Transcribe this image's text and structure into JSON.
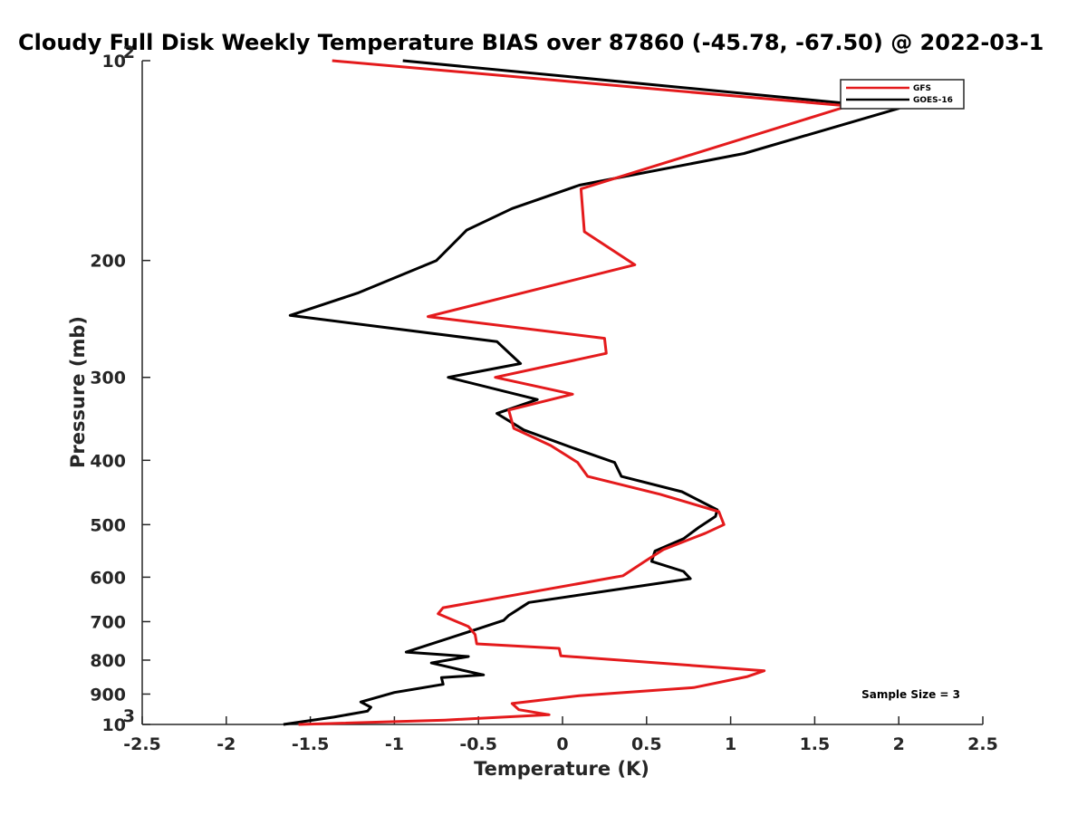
{
  "chart_data": {
    "type": "line",
    "title": "Cloudy Full Disk Weekly Temperature BIAS over 87860 (-45.78, -67.50) @ 2022-03-1",
    "xlabel": "Temperature (K)",
    "ylabel": "Pressure (mb)",
    "xlim": [
      -2.5,
      2.5
    ],
    "ylim": [
      100,
      1000
    ],
    "y_scale": "log",
    "y_reversed": true,
    "grid": false,
    "legend_position": "top-right",
    "x_ticks": [
      "-2.5",
      "-2",
      "-1.5",
      "-1",
      "-0.5",
      "0",
      "0.5",
      "1",
      "1.5",
      "2",
      "2.5"
    ],
    "x_tick_values": [
      -2.5,
      -2,
      -1.5,
      -1,
      -0.5,
      0,
      0.5,
      1,
      1.5,
      2,
      2.5
    ],
    "y_tick_values": [
      100,
      200,
      300,
      400,
      500,
      600,
      700,
      800,
      900,
      1000
    ],
    "y_tick_labels": [
      {
        "base": "10",
        "exp": "2"
      },
      {
        "base": "200",
        "exp": ""
      },
      {
        "base": "300",
        "exp": ""
      },
      {
        "base": "400",
        "exp": ""
      },
      {
        "base": "500",
        "exp": ""
      },
      {
        "base": "600",
        "exp": ""
      },
      {
        "base": "700",
        "exp": ""
      },
      {
        "base": "800",
        "exp": ""
      },
      {
        "base": "900",
        "exp": ""
      },
      {
        "base": "10",
        "exp": "3"
      }
    ],
    "annotation": "Sample Size = 3",
    "series": [
      {
        "name": "GFS",
        "color": "#e41a1c",
        "points": [
          {
            "x": -1.37,
            "y": 100
          },
          {
            "x": 1.7,
            "y": 117
          },
          {
            "x": 0.11,
            "y": 156
          },
          {
            "x": 0.13,
            "y": 181
          },
          {
            "x": 0.43,
            "y": 203
          },
          {
            "x": -0.8,
            "y": 243
          },
          {
            "x": 0.25,
            "y": 262
          },
          {
            "x": 0.26,
            "y": 276
          },
          {
            "x": -0.4,
            "y": 300
          },
          {
            "x": 0.06,
            "y": 318
          },
          {
            "x": -0.32,
            "y": 336
          },
          {
            "x": -0.29,
            "y": 358
          },
          {
            "x": -0.07,
            "y": 380
          },
          {
            "x": 0.09,
            "y": 403
          },
          {
            "x": 0.15,
            "y": 423
          },
          {
            "x": 0.58,
            "y": 450
          },
          {
            "x": 0.93,
            "y": 478
          },
          {
            "x": 0.96,
            "y": 500
          },
          {
            "x": 0.85,
            "y": 515
          },
          {
            "x": 0.6,
            "y": 545
          },
          {
            "x": 0.49,
            "y": 568
          },
          {
            "x": 0.36,
            "y": 597
          },
          {
            "x": -0.71,
            "y": 667
          },
          {
            "x": -0.74,
            "y": 681
          },
          {
            "x": -0.56,
            "y": 712
          },
          {
            "x": -0.52,
            "y": 732
          },
          {
            "x": -0.51,
            "y": 756
          },
          {
            "x": -0.02,
            "y": 768
          },
          {
            "x": -0.01,
            "y": 788
          },
          {
            "x": 1.2,
            "y": 830
          },
          {
            "x": 1.1,
            "y": 847
          },
          {
            "x": 0.78,
            "y": 880
          },
          {
            "x": 0.1,
            "y": 905
          },
          {
            "x": -0.3,
            "y": 930
          },
          {
            "x": -0.26,
            "y": 950
          },
          {
            "x": -0.08,
            "y": 967
          },
          {
            "x": -0.7,
            "y": 985
          },
          {
            "x": -1.57,
            "y": 1000
          }
        ]
      },
      {
        "name": "GOES-16",
        "color": "#000000",
        "points": [
          {
            "x": -0.95,
            "y": 100
          },
          {
            "x": 2.0,
            "y": 118
          },
          {
            "x": 1.08,
            "y": 138
          },
          {
            "x": 0.1,
            "y": 154
          },
          {
            "x": -0.3,
            "y": 167
          },
          {
            "x": -0.57,
            "y": 180
          },
          {
            "x": -0.75,
            "y": 200
          },
          {
            "x": -1.22,
            "y": 224
          },
          {
            "x": -1.62,
            "y": 242
          },
          {
            "x": -0.39,
            "y": 265
          },
          {
            "x": -0.25,
            "y": 286
          },
          {
            "x": -0.68,
            "y": 300
          },
          {
            "x": -0.15,
            "y": 324
          },
          {
            "x": -0.39,
            "y": 340
          },
          {
            "x": -0.23,
            "y": 360
          },
          {
            "x": 0.06,
            "y": 383
          },
          {
            "x": 0.31,
            "y": 403
          },
          {
            "x": 0.35,
            "y": 423
          },
          {
            "x": 0.71,
            "y": 446
          },
          {
            "x": 0.92,
            "y": 475
          },
          {
            "x": 0.91,
            "y": 486
          },
          {
            "x": 0.81,
            "y": 505
          },
          {
            "x": 0.72,
            "y": 525
          },
          {
            "x": 0.55,
            "y": 548
          },
          {
            "x": 0.53,
            "y": 568
          },
          {
            "x": 0.72,
            "y": 588
          },
          {
            "x": 0.76,
            "y": 603
          },
          {
            "x": -0.2,
            "y": 655
          },
          {
            "x": -0.32,
            "y": 685
          },
          {
            "x": -0.35,
            "y": 697
          },
          {
            "x": -0.52,
            "y": 720
          },
          {
            "x": -0.93,
            "y": 778
          },
          {
            "x": -0.56,
            "y": 790
          },
          {
            "x": -0.78,
            "y": 808
          },
          {
            "x": -0.6,
            "y": 828
          },
          {
            "x": -0.47,
            "y": 842
          },
          {
            "x": -0.72,
            "y": 850
          },
          {
            "x": -0.71,
            "y": 870
          },
          {
            "x": -1.0,
            "y": 895
          },
          {
            "x": -1.2,
            "y": 925
          },
          {
            "x": -1.14,
            "y": 942
          },
          {
            "x": -1.16,
            "y": 955
          },
          {
            "x": -1.36,
            "y": 975
          },
          {
            "x": -1.66,
            "y": 1000
          }
        ]
      }
    ]
  }
}
